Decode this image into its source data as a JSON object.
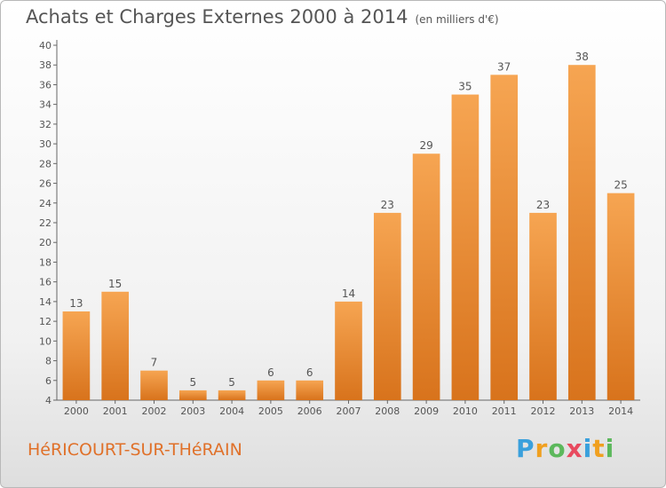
{
  "title": "Achats et Charges Externes 2000 à 2014",
  "unit": "(en milliers d'€)",
  "commune": "HéRICOURT-SUR-THéRAIN",
  "brand": {
    "letters": [
      "P",
      "r",
      "o",
      "x",
      "i",
      "t",
      "i"
    ],
    "colors": [
      "#3aa0dc",
      "#f0a020",
      "#5cb85c",
      "#e84a5f",
      "#3aa0dc",
      "#f0a020",
      "#5cb85c"
    ]
  },
  "colors": {
    "bar_light": "#f6a552",
    "bar_dark": "#d8731c",
    "text": "#555555",
    "commune": "#e0712a"
  },
  "chart_data": {
    "type": "bar",
    "categories": [
      "2000",
      "2001",
      "2002",
      "2003",
      "2004",
      "2005",
      "2006",
      "2007",
      "2008",
      "2009",
      "2010",
      "2011",
      "2012",
      "2013",
      "2014"
    ],
    "values": [
      13,
      15,
      7,
      5,
      5,
      6,
      6,
      14,
      23,
      29,
      35,
      37,
      23,
      38,
      25
    ],
    "ylim": [
      4,
      40
    ],
    "yticks": [
      4,
      6,
      8,
      10,
      12,
      14,
      16,
      18,
      20,
      22,
      24,
      26,
      28,
      30,
      32,
      34,
      36,
      38,
      40
    ],
    "grid": false,
    "data_labels": true
  }
}
